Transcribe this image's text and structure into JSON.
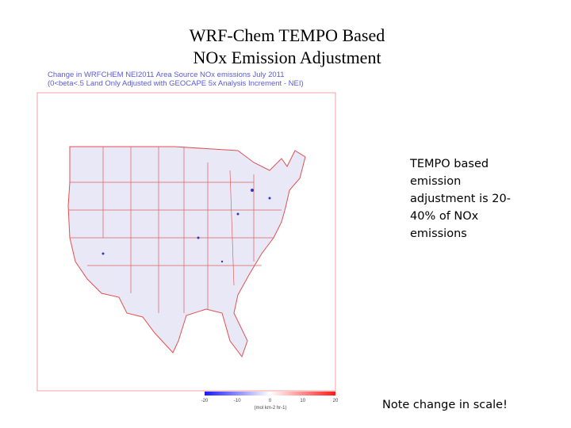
{
  "slide": {
    "title_lines": [
      "WRF-Chem TEMPO Based",
      "NOx Emission Adjustment"
    ],
    "map": {
      "header_lines": [
        "Change in WRFCHEM NEI2011 Area Source NOx emissions July 2011",
        "(0<beta<.5 Land Only Adjusted with GEOCAPE 5x Analysis Increment - NEI)"
      ],
      "colorbar": {
        "ticks": [
          -20,
          -10,
          0,
          10,
          20
        ],
        "label": "(mol km-2 hr-1)"
      }
    },
    "side_text": "TEMPO based emission adjustment is 20-40% of NOx emissions",
    "note": "Note change in scale!"
  }
}
